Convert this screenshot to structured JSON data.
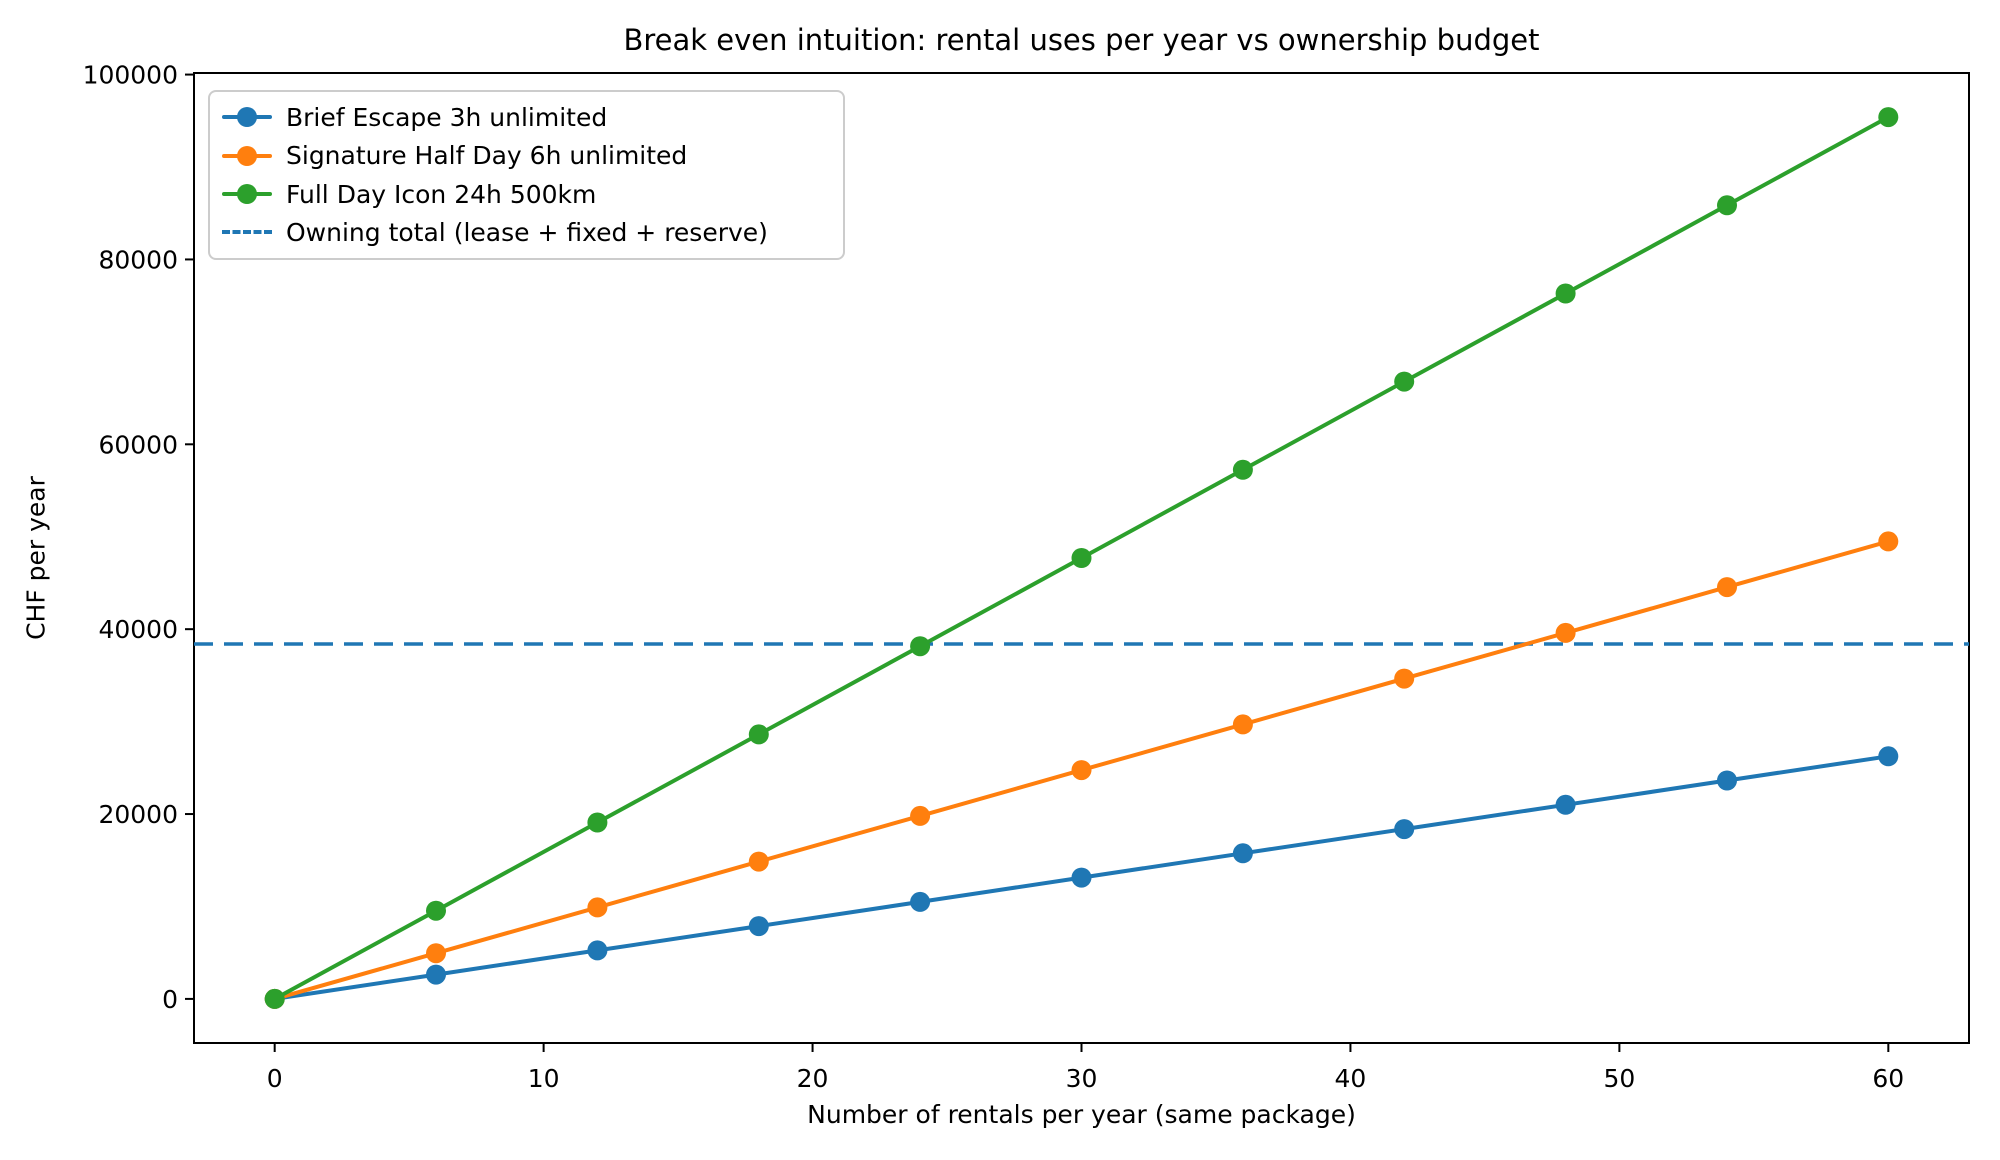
{
  "chart_data": {
    "type": "line",
    "title": "Break even intuition: rental uses per year vs ownership budget",
    "xlabel": "Number of rentals per year (same package)",
    "ylabel": "CHF per year",
    "x": [
      0,
      6,
      12,
      18,
      24,
      30,
      36,
      42,
      48,
      54,
      60
    ],
    "series": [
      {
        "name": "Brief Escape 3h unlimited",
        "color": "#1f77b4",
        "line_style": "solid",
        "marker": "circle",
        "values": [
          0,
          2625,
          5250,
          7875,
          10500,
          13125,
          15750,
          18375,
          21000,
          23625,
          26250
        ]
      },
      {
        "name": "Signature Half Day 6h unlimited",
        "color": "#ff7f0e",
        "line_style": "solid",
        "marker": "circle",
        "values": [
          0,
          4950,
          9900,
          14850,
          19800,
          24750,
          29700,
          34650,
          39600,
          44550,
          49500
        ]
      },
      {
        "name": "Full Day Icon 24h 500km",
        "color": "#2ca02c",
        "line_style": "solid",
        "marker": "circle",
        "values": [
          0,
          9540,
          19080,
          28620,
          38160,
          47700,
          57240,
          66780,
          76320,
          85860,
          95400
        ]
      }
    ],
    "reference_line": {
      "name": "Owning total (lease + fixed + reserve)",
      "color": "#1f77b4",
      "line_style": "dashed",
      "value": 38400
    },
    "xticks": [
      0,
      10,
      20,
      30,
      40,
      50,
      60
    ],
    "yticks": [
      0,
      20000,
      40000,
      60000,
      80000,
      100000
    ],
    "xlim": [
      -3,
      63
    ],
    "ylim": [
      -4770,
      100170
    ],
    "legend_position": "upper-left",
    "grid": false,
    "spine_color": "#000000",
    "background_color": "#ffffff"
  }
}
